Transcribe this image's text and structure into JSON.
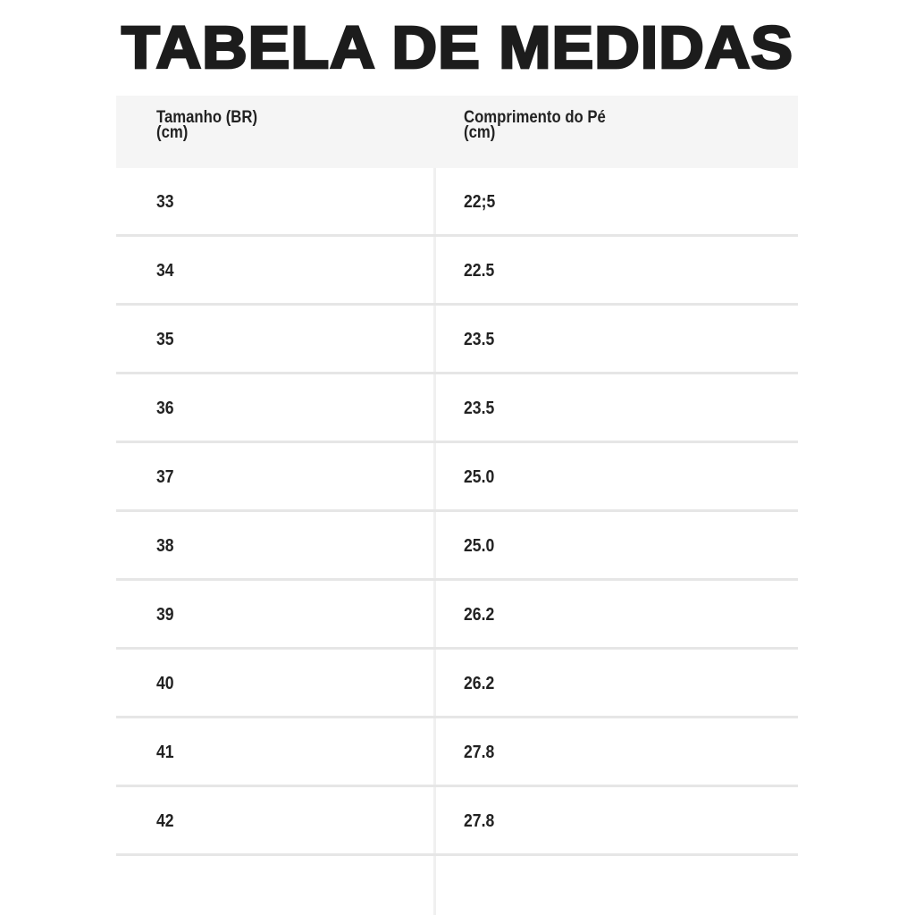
{
  "title": "TABELA DE MEDIDAS",
  "table": {
    "headers": [
      "Tamanho (BR)\n(cm)",
      "Comprimento do Pé\n(cm)"
    ],
    "rows": [
      [
        "33",
        "22;5"
      ],
      [
        "34",
        "22.5"
      ],
      [
        "35",
        "23.5"
      ],
      [
        "36",
        "23.5"
      ],
      [
        "37",
        "25.0"
      ],
      [
        "38",
        "25.0"
      ],
      [
        "39",
        "26.2"
      ],
      [
        "40",
        "26.2"
      ],
      [
        "41",
        "27.8"
      ],
      [
        "42",
        "27.8"
      ]
    ]
  }
}
